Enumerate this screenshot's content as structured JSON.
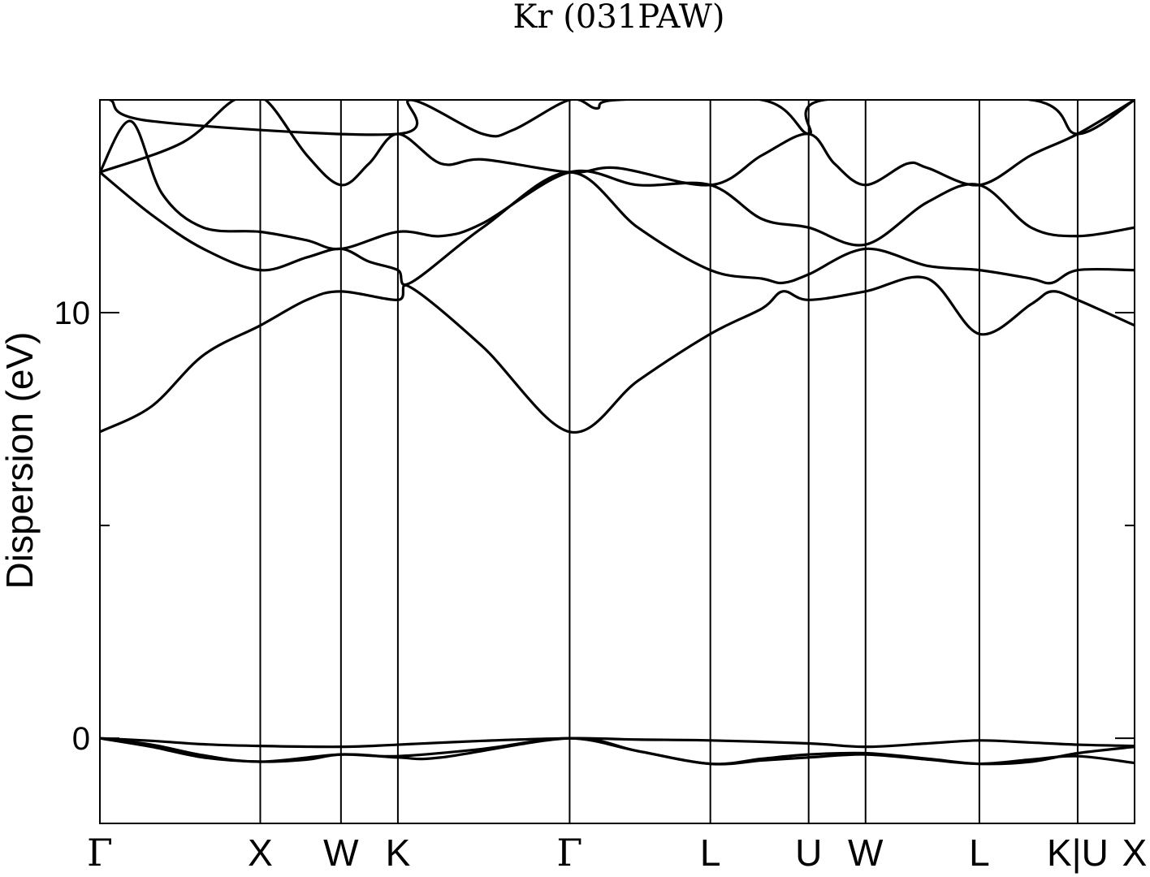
{
  "chart_data": {
    "type": "line",
    "title": "Kr (031PAW)",
    "ylabel": "Dispersion (eV)",
    "xlabel": "",
    "ylim": [
      -2.0,
      15.0
    ],
    "xlim": [
      0,
      1
    ],
    "yticks": [
      0,
      10
    ],
    "ytick_minor": [
      5
    ],
    "grid": false,
    "legend": "none",
    "line_color": "#000000",
    "high_symmetry_points": [
      {
        "label": "Γ",
        "x": 0.0
      },
      {
        "label": "X",
        "x": 0.155
      },
      {
        "label": "W",
        "x": 0.233
      },
      {
        "label": "K",
        "x": 0.288
      },
      {
        "label": "Γ",
        "x": 0.454
      },
      {
        "label": "L",
        "x": 0.59
      },
      {
        "label": "U",
        "x": 0.685
      },
      {
        "label": "W",
        "x": 0.74
      },
      {
        "label": "L",
        "x": 0.85
      },
      {
        "label": "K|U",
        "x": 0.945
      },
      {
        "label": "X",
        "x": 1.0
      }
    ],
    "series": [
      {
        "values": [
          [
            0.0,
            0.0
          ],
          [
            0.05,
            -0.06
          ],
          [
            0.1,
            -0.14
          ],
          [
            0.155,
            -0.18
          ],
          [
            0.233,
            -0.2
          ],
          [
            0.288,
            -0.15
          ],
          [
            0.37,
            -0.06
          ],
          [
            0.454,
            0.0
          ],
          [
            0.52,
            -0.03
          ],
          [
            0.59,
            -0.05
          ],
          [
            0.685,
            -0.12
          ],
          [
            0.74,
            -0.2
          ],
          [
            0.8,
            -0.12
          ],
          [
            0.85,
            -0.05
          ],
          [
            0.9,
            -0.1
          ],
          [
            0.945,
            -0.15
          ],
          [
            1.0,
            -0.18
          ]
        ]
      },
      {
        "values": [
          [
            0.0,
            0.0
          ],
          [
            0.05,
            -0.2
          ],
          [
            0.1,
            -0.45
          ],
          [
            0.155,
            -0.55
          ],
          [
            0.2,
            -0.5
          ],
          [
            0.233,
            -0.38
          ],
          [
            0.288,
            -0.42
          ],
          [
            0.37,
            -0.25
          ],
          [
            0.454,
            0.0
          ],
          [
            0.52,
            -0.3
          ],
          [
            0.59,
            -0.6
          ],
          [
            0.64,
            -0.52
          ],
          [
            0.685,
            -0.45
          ],
          [
            0.74,
            -0.38
          ],
          [
            0.8,
            -0.5
          ],
          [
            0.85,
            -0.6
          ],
          [
            0.9,
            -0.5
          ],
          [
            0.945,
            -0.42
          ],
          [
            1.0,
            -0.58
          ]
        ]
      },
      {
        "values": [
          [
            0.0,
            0.0
          ],
          [
            0.05,
            -0.15
          ],
          [
            0.1,
            -0.4
          ],
          [
            0.155,
            -0.55
          ],
          [
            0.233,
            -0.38
          ],
          [
            0.288,
            -0.45
          ],
          [
            0.33,
            -0.45
          ],
          [
            0.454,
            0.0
          ],
          [
            0.52,
            -0.3
          ],
          [
            0.59,
            -0.6
          ],
          [
            0.64,
            -0.48
          ],
          [
            0.685,
            -0.38
          ],
          [
            0.74,
            -0.35
          ],
          [
            0.8,
            -0.48
          ],
          [
            0.85,
            -0.6
          ],
          [
            0.9,
            -0.55
          ],
          [
            0.945,
            -0.35
          ],
          [
            1.0,
            -0.2
          ]
        ]
      },
      {
        "values": [
          [
            0.0,
            7.2
          ],
          [
            0.05,
            7.8
          ],
          [
            0.1,
            9.0
          ],
          [
            0.155,
            9.7
          ],
          [
            0.2,
            10.3
          ],
          [
            0.233,
            10.5
          ],
          [
            0.288,
            10.3
          ],
          [
            0.3,
            10.6
          ],
          [
            0.37,
            9.2
          ],
          [
            0.454,
            7.2
          ],
          [
            0.52,
            8.4
          ],
          [
            0.59,
            9.5
          ],
          [
            0.64,
            10.1
          ],
          [
            0.66,
            10.5
          ],
          [
            0.685,
            10.3
          ],
          [
            0.74,
            10.5
          ],
          [
            0.8,
            10.8
          ],
          [
            0.85,
            9.5
          ],
          [
            0.9,
            10.2
          ],
          [
            0.92,
            10.5
          ],
          [
            0.945,
            10.3
          ],
          [
            1.0,
            9.7
          ]
        ]
      },
      {
        "values": [
          [
            0.0,
            13.3
          ],
          [
            0.05,
            12.3
          ],
          [
            0.1,
            11.5
          ],
          [
            0.155,
            11.0
          ],
          [
            0.2,
            11.3
          ],
          [
            0.233,
            11.5
          ],
          [
            0.26,
            11.2
          ],
          [
            0.288,
            11.0
          ],
          [
            0.3,
            10.7
          ],
          [
            0.37,
            12.0
          ],
          [
            0.454,
            13.3
          ],
          [
            0.52,
            12.0
          ],
          [
            0.59,
            11.0
          ],
          [
            0.64,
            10.8
          ],
          [
            0.66,
            10.7
          ],
          [
            0.685,
            10.9
          ],
          [
            0.74,
            11.5
          ],
          [
            0.8,
            11.1
          ],
          [
            0.85,
            11.0
          ],
          [
            0.9,
            10.8
          ],
          [
            0.92,
            10.7
          ],
          [
            0.945,
            11.0
          ],
          [
            1.0,
            11.0
          ]
        ]
      },
      {
        "values": [
          [
            0.0,
            13.3
          ],
          [
            0.03,
            14.5
          ],
          [
            0.06,
            12.8
          ],
          [
            0.1,
            12.0
          ],
          [
            0.155,
            11.9
          ],
          [
            0.2,
            11.7
          ],
          [
            0.233,
            11.5
          ],
          [
            0.288,
            11.9
          ],
          [
            0.33,
            11.8
          ],
          [
            0.37,
            12.1
          ],
          [
            0.454,
            13.3
          ],
          [
            0.52,
            13.0
          ],
          [
            0.59,
            13.0
          ],
          [
            0.64,
            12.2
          ],
          [
            0.685,
            12.0
          ],
          [
            0.74,
            11.6
          ],
          [
            0.8,
            12.6
          ],
          [
            0.85,
            13.0
          ],
          [
            0.9,
            12.0
          ],
          [
            0.945,
            11.8
          ],
          [
            1.0,
            12.0
          ]
        ]
      },
      {
        "values": [
          [
            0.0,
            13.3
          ],
          [
            0.08,
            14.0
          ],
          [
            0.13,
            15.0
          ],
          [
            0.16,
            15.0
          ],
          [
            0.2,
            13.7
          ],
          [
            0.233,
            13.0
          ],
          [
            0.26,
            13.5
          ],
          [
            0.288,
            14.2
          ],
          [
            0.33,
            13.5
          ],
          [
            0.37,
            13.6
          ],
          [
            0.454,
            13.3
          ],
          [
            0.5,
            13.4
          ],
          [
            0.59,
            13.0
          ],
          [
            0.64,
            13.7
          ],
          [
            0.685,
            14.2
          ],
          [
            0.71,
            13.5
          ],
          [
            0.74,
            13.0
          ],
          [
            0.78,
            13.5
          ],
          [
            0.8,
            13.4
          ],
          [
            0.85,
            13.0
          ],
          [
            0.9,
            13.7
          ],
          [
            0.945,
            14.2
          ],
          [
            1.0,
            15.0
          ]
        ]
      },
      {
        "values": [
          [
            0.0,
            15.0
          ],
          [
            0.01,
            15.0
          ],
          [
            0.05,
            14.5
          ],
          [
            0.288,
            14.2
          ],
          [
            0.3,
            15.0
          ],
          [
            0.37,
            14.2
          ],
          [
            0.4,
            14.3
          ],
          [
            0.454,
            15.0
          ],
          [
            0.48,
            14.8
          ],
          [
            0.5,
            15.0
          ],
          [
            0.64,
            15.0
          ],
          [
            0.685,
            14.2
          ],
          [
            0.7,
            15.0
          ],
          [
            0.9,
            15.0
          ],
          [
            0.945,
            14.2
          ],
          [
            1.0,
            15.0
          ]
        ]
      }
    ]
  }
}
